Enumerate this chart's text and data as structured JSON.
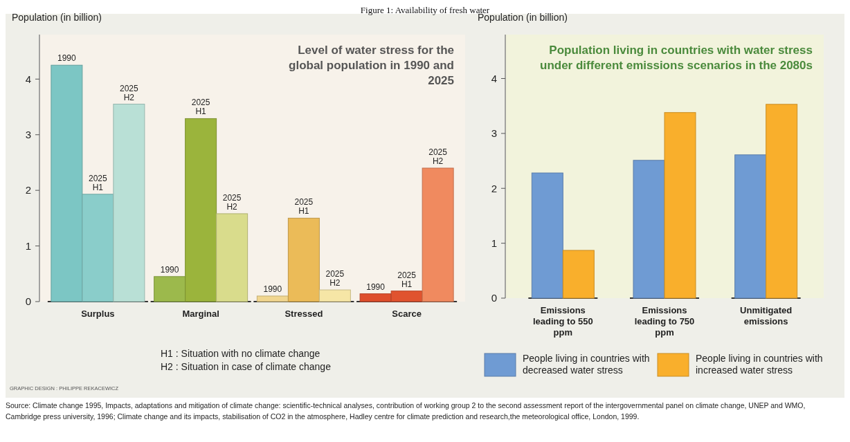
{
  "chart_data": [
    {
      "type": "bar",
      "title": "Level of water stress for the global population in 1990 and 2025",
      "ylabel": "Population (in billion)",
      "categories": [
        "Surplus",
        "Marginal",
        "Stressed",
        "Scarce"
      ],
      "series": [
        {
          "name": "1990",
          "colors": [
            "#7cc6c4",
            "#9cb94c",
            "#f1d68f",
            "#de4e2c"
          ],
          "values": [
            4.25,
            0.45,
            0.1,
            0.14
          ]
        },
        {
          "name": "2025 H1",
          "colors": [
            "#8acdca",
            "#9bb43c",
            "#ebbb58",
            "#e0532f"
          ],
          "values": [
            1.93,
            3.29,
            1.5,
            0.19
          ]
        },
        {
          "name": "2025 H2",
          "colors": [
            "#b9e0d6",
            "#d9dc8c",
            "#f6e6a6",
            "#f08a5f"
          ],
          "values": [
            3.55,
            1.58,
            0.21,
            2.4
          ]
        }
      ],
      "ylim": [
        0,
        4.8
      ],
      "yticks": [
        0,
        1,
        2,
        3,
        4
      ],
      "annotations": [
        "Figure 1: Availability of fresh water",
        "H1 : Situation with no climate change",
        "H2 : Situation in case of climate change",
        "GRAPHIC DESIGN : PHILIPPE REKACEWICZ",
        "Source: Climate change 1995, Impacts, adaptations and mitigation of climate change: scientific-technical analyses, contribution of working group 2 to the second assessment report of the intergovernmental panel on climate change, UNEP and WMO, Cambridge press university,  1996; Climate change and its impacts, stabilisation of CO2 in the atmosphere, Hadley centre for climate prediction and research,the meteorological office, London, 1999."
      ]
    },
    {
      "type": "bar",
      "title": "Population living in countries with water stress under different emissions scenarios in the 2080s",
      "ylabel": "Population (in billion)",
      "categories": [
        "Emissions leading to 550 ppm",
        "Emissions leading to 750 ppm",
        "Unmitigated emissions"
      ],
      "series": [
        {
          "name": "People living in countries with decreased water stress",
          "color": "#6f9bd3",
          "values": [
            2.28,
            2.51,
            2.61
          ]
        },
        {
          "name": "People living in countries with increased water stress",
          "color": "#f9af2c",
          "values": [
            0.87,
            3.38,
            3.53
          ]
        }
      ],
      "ylim": [
        0,
        4.8
      ],
      "yticks": [
        0,
        1,
        2,
        3,
        4
      ],
      "legend": "bottom"
    }
  ]
}
